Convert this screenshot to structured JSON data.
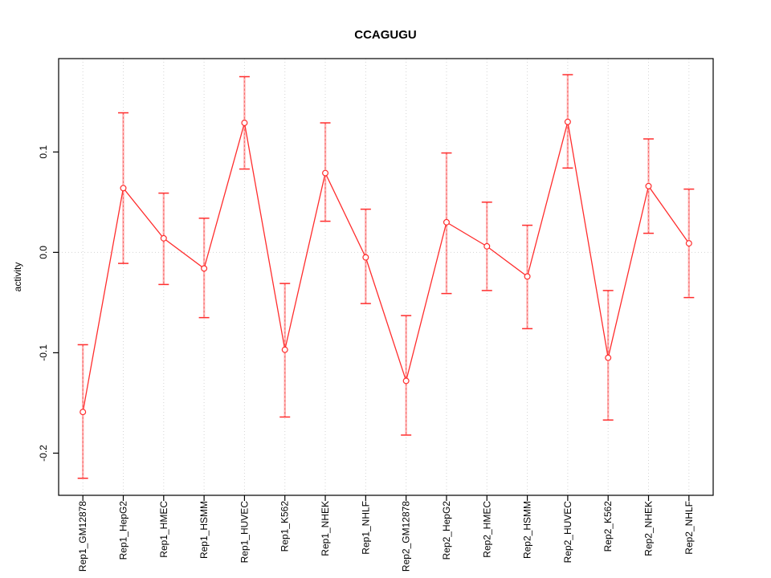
{
  "chart_data": {
    "type": "line",
    "title": "CCAGUGU",
    "ylabel": "activity",
    "xlabel": "",
    "legend_position": "none",
    "grid": "vertical dotted gridline per category; dotted horizontal line at y=0",
    "categories": [
      "Rep1_GM12878",
      "Rep1_HepG2",
      "Rep1_HMEC",
      "Rep1_HSMM",
      "Rep1_HUVEC",
      "Rep1_K562",
      "Rep1_NHEK",
      "Rep1_NHLF",
      "Rep2_GM12878",
      "Rep2_HepG2",
      "Rep2_HMEC",
      "Rep2_HSMM",
      "Rep2_HUVEC",
      "Rep2_K562",
      "Rep2_NHEK",
      "Rep2_NHLF"
    ],
    "series": [
      {
        "name": "activity",
        "marker": "open-circle",
        "values": [
          -0.159,
          0.064,
          0.014,
          -0.016,
          0.129,
          -0.097,
          0.079,
          -0.005,
          -0.128,
          0.03,
          0.006,
          -0.024,
          0.13,
          -0.105,
          0.066,
          0.009
        ],
        "lower": [
          -0.225,
          -0.011,
          -0.032,
          -0.065,
          0.083,
          -0.164,
          0.031,
          -0.051,
          -0.182,
          -0.041,
          -0.038,
          -0.076,
          0.084,
          -0.167,
          0.019,
          -0.045
        ],
        "upper": [
          -0.092,
          0.139,
          0.059,
          0.034,
          0.175,
          -0.031,
          0.129,
          0.043,
          -0.063,
          0.099,
          0.05,
          0.027,
          0.177,
          -0.038,
          0.113,
          0.063
        ]
      }
    ],
    "ylim": [
      -0.242,
      0.193
    ],
    "yticks": [
      0.1,
      0.0,
      -0.1,
      -0.2
    ],
    "ytick_labels": [
      "0.1",
      "0.0",
      "-0.1",
      "-0.2"
    ],
    "colors": {
      "series": "#ff2d2d",
      "error_stem_solid": "#ffb2b2",
      "error_stem_dash": "#f56a6a",
      "grid": "#d4d4d4",
      "frame": "#000000",
      "text": "#000000",
      "background": "#ffffff"
    }
  }
}
